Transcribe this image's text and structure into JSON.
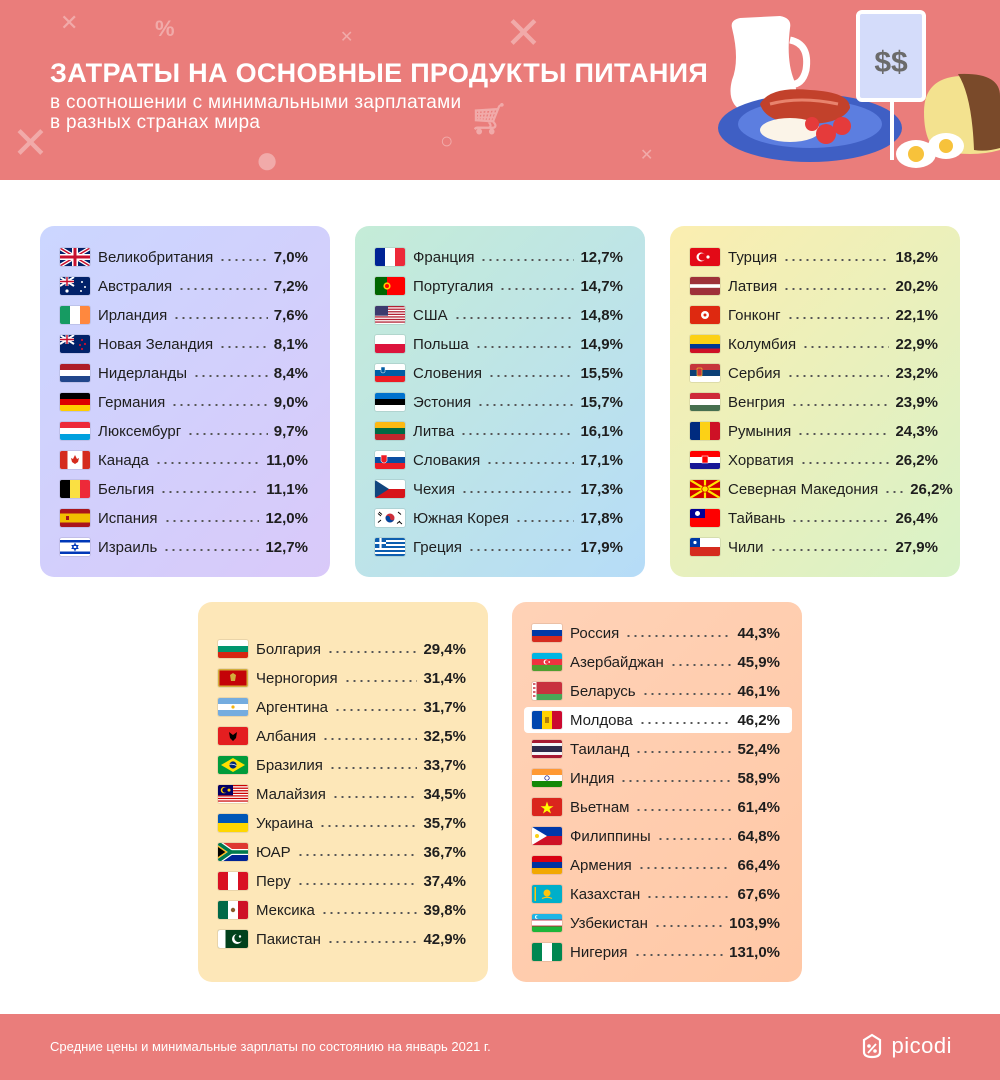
{
  "header": {
    "title": "ЗАТРАТЫ НА ОСНОВНЫЕ ПРОДУКТЫ ПИТАНИЯ",
    "subtitle_line1": "в соотношении с минимальными зарплатами",
    "subtitle_line2": "в разных странах мира",
    "price_sign": "$$"
  },
  "colors": {
    "header_bg": "#ea7d7b",
    "card1": [
      "#cbd6ff",
      "#d9c9f9"
    ],
    "card2": [
      "#c5ecd7",
      "#b6dcf8"
    ],
    "card3": [
      "#fbeeb0",
      "#d8f2c8"
    ],
    "card4": [
      "#fde7b8",
      "#fde7b8"
    ],
    "card5": [
      "#ffd2b7",
      "#ffc8a6"
    ]
  },
  "chart_data": {
    "type": "table",
    "groups": [
      {
        "rows": [
          {
            "country": "Великобритания",
            "value": "7,0%",
            "flag": "uk"
          },
          {
            "country": "Австралия",
            "value": "7,2%",
            "flag": "australia"
          },
          {
            "country": "Ирландия",
            "value": "7,6%",
            "flag": "ireland"
          },
          {
            "country": "Новая Зеландия",
            "value": "8,1%",
            "flag": "new-zealand"
          },
          {
            "country": "Нидерланды",
            "value": "8,4%",
            "flag": "netherlands"
          },
          {
            "country": "Германия",
            "value": "9,0%",
            "flag": "germany"
          },
          {
            "country": "Люксембург",
            "value": "9,7%",
            "flag": "luxembourg"
          },
          {
            "country": "Канада",
            "value": "11,0%",
            "flag": "canada"
          },
          {
            "country": "Бельгия",
            "value": "11,1%",
            "flag": "belgium"
          },
          {
            "country": "Испания",
            "value": "12,0%",
            "flag": "spain"
          },
          {
            "country": "Израиль",
            "value": "12,7%",
            "flag": "israel"
          }
        ]
      },
      {
        "rows": [
          {
            "country": "Франция",
            "value": "12,7%",
            "flag": "france"
          },
          {
            "country": "Португалия",
            "value": "14,7%",
            "flag": "portugal"
          },
          {
            "country": "США",
            "value": "14,8%",
            "flag": "usa"
          },
          {
            "country": "Польша",
            "value": "14,9%",
            "flag": "poland"
          },
          {
            "country": "Словения",
            "value": "15,5%",
            "flag": "slovenia"
          },
          {
            "country": "Эстония",
            "value": "15,7%",
            "flag": "estonia"
          },
          {
            "country": "Литва",
            "value": "16,1%",
            "flag": "lithuania"
          },
          {
            "country": "Словакия",
            "value": "17,1%",
            "flag": "slovakia"
          },
          {
            "country": "Чехия",
            "value": "17,3%",
            "flag": "czech"
          },
          {
            "country": "Южная Корея",
            "value": "17,8%",
            "flag": "south-korea"
          },
          {
            "country": "Греция",
            "value": "17,9%",
            "flag": "greece"
          }
        ]
      },
      {
        "rows": [
          {
            "country": "Турция",
            "value": "18,2%",
            "flag": "turkey"
          },
          {
            "country": "Латвия",
            "value": "20,2%",
            "flag": "latvia"
          },
          {
            "country": "Гонконг",
            "value": "22,1%",
            "flag": "hong-kong"
          },
          {
            "country": "Колумбия",
            "value": "22,9%",
            "flag": "colombia"
          },
          {
            "country": "Сербия",
            "value": "23,2%",
            "flag": "serbia"
          },
          {
            "country": "Венгрия",
            "value": "23,9%",
            "flag": "hungary"
          },
          {
            "country": "Румыния",
            "value": "24,3%",
            "flag": "romania"
          },
          {
            "country": "Хорватия",
            "value": "26,2%",
            "flag": "croatia"
          },
          {
            "country": "Северная Македония",
            "value": "26,2%",
            "flag": "north-macedonia"
          },
          {
            "country": "Тайвань",
            "value": "26,4%",
            "flag": "taiwan"
          },
          {
            "country": "Чили",
            "value": "27,9%",
            "flag": "chile"
          }
        ]
      },
      {
        "rows": [
          {
            "country": "Болгария",
            "value": "29,4%",
            "flag": "bulgaria"
          },
          {
            "country": "Черногория",
            "value": "31,4%",
            "flag": "montenegro"
          },
          {
            "country": "Аргентина",
            "value": "31,7%",
            "flag": "argentina"
          },
          {
            "country": "Албания",
            "value": "32,5%",
            "flag": "albania"
          },
          {
            "country": "Бразилия",
            "value": "33,7%",
            "flag": "brazil"
          },
          {
            "country": "Малайзия",
            "value": "34,5%",
            "flag": "malaysia"
          },
          {
            "country": "Украина",
            "value": "35,7%",
            "flag": "ukraine"
          },
          {
            "country": "ЮАР",
            "value": "36,7%",
            "flag": "south-africa"
          },
          {
            "country": "Перу",
            "value": "37,4%",
            "flag": "peru"
          },
          {
            "country": "Мексика",
            "value": "39,8%",
            "flag": "mexico"
          },
          {
            "country": "Пакистан",
            "value": "42,9%",
            "flag": "pakistan"
          }
        ]
      },
      {
        "rows": [
          {
            "country": "Россия",
            "value": "44,3%",
            "flag": "russia"
          },
          {
            "country": "Азербайджан",
            "value": "45,9%",
            "flag": "azerbaijan"
          },
          {
            "country": "Беларусь",
            "value": "46,1%",
            "flag": "belarus"
          },
          {
            "country": "Молдова",
            "value": "46,2%",
            "flag": "moldova",
            "highlight": true
          },
          {
            "country": "Таиланд",
            "value": "52,4%",
            "flag": "thailand"
          },
          {
            "country": "Индия",
            "value": "58,9%",
            "flag": "india"
          },
          {
            "country": "Вьетнам",
            "value": "61,4%",
            "flag": "vietnam"
          },
          {
            "country": "Филиппины",
            "value": "64,8%",
            "flag": "philippines"
          },
          {
            "country": "Армения",
            "value": "66,4%",
            "flag": "armenia"
          },
          {
            "country": "Казахстан",
            "value": "67,6%",
            "flag": "kazakhstan"
          },
          {
            "country": "Узбекистан",
            "value": "103,9%",
            "flag": "uzbekistan"
          },
          {
            "country": "Нигерия",
            "value": "131,0%",
            "flag": "nigeria"
          }
        ]
      }
    ]
  },
  "footer": {
    "note": "Средние цены и минимальные зарплаты по состоянию на январь 2021 г.",
    "brand": "picodi",
    "brand_icon": "picodi-logo-icon"
  }
}
